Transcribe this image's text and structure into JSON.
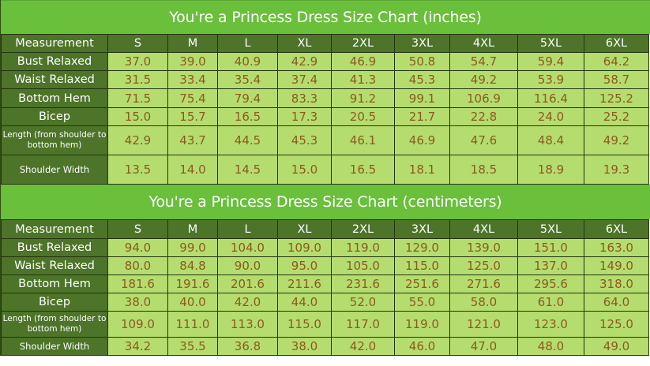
{
  "tables": [
    {
      "title": "You're a Princess Dress Size Chart (inches)",
      "header": [
        "Measurement",
        "S",
        "M",
        "L",
        "XL",
        "2XL",
        "3XL",
        "4XL",
        "5XL",
        "6XL"
      ],
      "rows": [
        {
          "label": "Bust Relaxed",
          "values": [
            "37.0",
            "39.0",
            "40.9",
            "42.9",
            "46.9",
            "50.8",
            "54.7",
            "59.4",
            "64.2"
          ]
        },
        {
          "label": "Waist Relaxed",
          "values": [
            "31.5",
            "33.4",
            "35.4",
            "37.4",
            "41.3",
            "45.3",
            "49.2",
            "53.9",
            "58.7"
          ]
        },
        {
          "label": "Bottom Hem",
          "values": [
            "71.5",
            "75.4",
            "79.4",
            "83.3",
            "91.2",
            "99.1",
            "106.9",
            "116.4",
            "125.2"
          ]
        },
        {
          "label": "Bicep",
          "values": [
            "15.0",
            "15.7",
            "16.5",
            "17.3",
            "20.5",
            "21.7",
            "22.8",
            "24.0",
            "25.2"
          ]
        },
        {
          "label": "Length (from shoulder to bottom hem)",
          "values": [
            "42.9",
            "43.7",
            "44.5",
            "45.3",
            "46.1",
            "46.9",
            "47.6",
            "48.4",
            "49.2"
          ]
        },
        {
          "label": "Shoulder Width",
          "values": [
            "13.5",
            "14.0",
            "14.5",
            "15.0",
            "16.5",
            "18.1",
            "18.5",
            "18.9",
            "19.3"
          ]
        }
      ]
    },
    {
      "title": "You're a Princess Dress Size Chart (centimeters)",
      "header": [
        "Measurement",
        "S",
        "M",
        "L",
        "XL",
        "2XL",
        "3XL",
        "4XL",
        "5XL",
        "6XL"
      ],
      "rows": [
        {
          "label": "Bust Relaxed",
          "values": [
            "94.0",
            "99.0",
            "104.0",
            "109.0",
            "119.0",
            "129.0",
            "139.0",
            "151.0",
            "163.0"
          ]
        },
        {
          "label": "Waist Relaxed",
          "values": [
            "80.0",
            "84.8",
            "90.0",
            "95.0",
            "105.0",
            "115.0",
            "125.0",
            "137.0",
            "149.0"
          ]
        },
        {
          "label": "Bottom Hem",
          "values": [
            "181.6",
            "191.6",
            "201.6",
            "211.6",
            "231.6",
            "251.6",
            "271.6",
            "295.6",
            "318.0"
          ]
        },
        {
          "label": "Bicep",
          "values": [
            "38.0",
            "40.0",
            "42.0",
            "44.0",
            "52.0",
            "55.0",
            "58.0",
            "61.0",
            "64.0"
          ]
        },
        {
          "label": "Length (from shoulder to bottom hem)",
          "values": [
            "109.0",
            "111.0",
            "113.0",
            "115.0",
            "117.0",
            "119.0",
            "121.0",
            "123.0",
            "125.0"
          ]
        },
        {
          "label": "Shoulder Width",
          "values": [
            "34.2",
            "35.5",
            "36.8",
            "38.0",
            "42.0",
            "46.0",
            "47.0",
            "48.0",
            "49.0"
          ]
        }
      ]
    }
  ],
  "colors": {
    "title_bg": "#6abf3b",
    "header_bg": "#4d7428",
    "cell_bg": "#b5dc6f",
    "value_text": "#8b5a1e",
    "grid": "#23350f"
  },
  "chart_data": [
    {
      "type": "table",
      "title": "You're a Princess Dress Size Chart (inches)",
      "columns": [
        "Measurement",
        "S",
        "M",
        "L",
        "XL",
        "2XL",
        "3XL",
        "4XL",
        "5XL",
        "6XL"
      ],
      "categories": [
        "S",
        "M",
        "L",
        "XL",
        "2XL",
        "3XL",
        "4XL",
        "5XL",
        "6XL"
      ],
      "series": [
        {
          "name": "Bust Relaxed",
          "values": [
            37.0,
            39.0,
            40.9,
            42.9,
            46.9,
            50.8,
            54.7,
            59.4,
            64.2
          ]
        },
        {
          "name": "Waist Relaxed",
          "values": [
            31.5,
            33.4,
            35.4,
            37.4,
            41.3,
            45.3,
            49.2,
            53.9,
            58.7
          ]
        },
        {
          "name": "Bottom Hem",
          "values": [
            71.5,
            75.4,
            79.4,
            83.3,
            91.2,
            99.1,
            106.9,
            116.4,
            125.2
          ]
        },
        {
          "name": "Bicep",
          "values": [
            15.0,
            15.7,
            16.5,
            17.3,
            20.5,
            21.7,
            22.8,
            24.0,
            25.2
          ]
        },
        {
          "name": "Length (from shoulder to bottom hem)",
          "values": [
            42.9,
            43.7,
            44.5,
            45.3,
            46.1,
            46.9,
            47.6,
            48.4,
            49.2
          ]
        },
        {
          "name": "Shoulder Width",
          "values": [
            13.5,
            14.0,
            14.5,
            15.0,
            16.5,
            18.1,
            18.5,
            18.9,
            19.3
          ]
        }
      ]
    },
    {
      "type": "table",
      "title": "You're a Princess Dress Size Chart (centimeters)",
      "columns": [
        "Measurement",
        "S",
        "M",
        "L",
        "XL",
        "2XL",
        "3XL",
        "4XL",
        "5XL",
        "6XL"
      ],
      "categories": [
        "S",
        "M",
        "L",
        "XL",
        "2XL",
        "3XL",
        "4XL",
        "5XL",
        "6XL"
      ],
      "series": [
        {
          "name": "Bust Relaxed",
          "values": [
            94.0,
            99.0,
            104.0,
            109.0,
            119.0,
            129.0,
            139.0,
            151.0,
            163.0
          ]
        },
        {
          "name": "Waist Relaxed",
          "values": [
            80.0,
            84.8,
            90.0,
            95.0,
            105.0,
            115.0,
            125.0,
            137.0,
            149.0
          ]
        },
        {
          "name": "Bottom Hem",
          "values": [
            181.6,
            191.6,
            201.6,
            211.6,
            231.6,
            251.6,
            271.6,
            295.6,
            318.0
          ]
        },
        {
          "name": "Bicep",
          "values": [
            38.0,
            40.0,
            42.0,
            44.0,
            52.0,
            55.0,
            58.0,
            61.0,
            64.0
          ]
        },
        {
          "name": "Length (from shoulder to bottom hem)",
          "values": [
            109.0,
            111.0,
            113.0,
            115.0,
            117.0,
            119.0,
            121.0,
            123.0,
            125.0
          ]
        },
        {
          "name": "Shoulder Width",
          "values": [
            34.2,
            35.5,
            36.8,
            38.0,
            42.0,
            46.0,
            47.0,
            48.0,
            49.0
          ]
        }
      ]
    }
  ]
}
